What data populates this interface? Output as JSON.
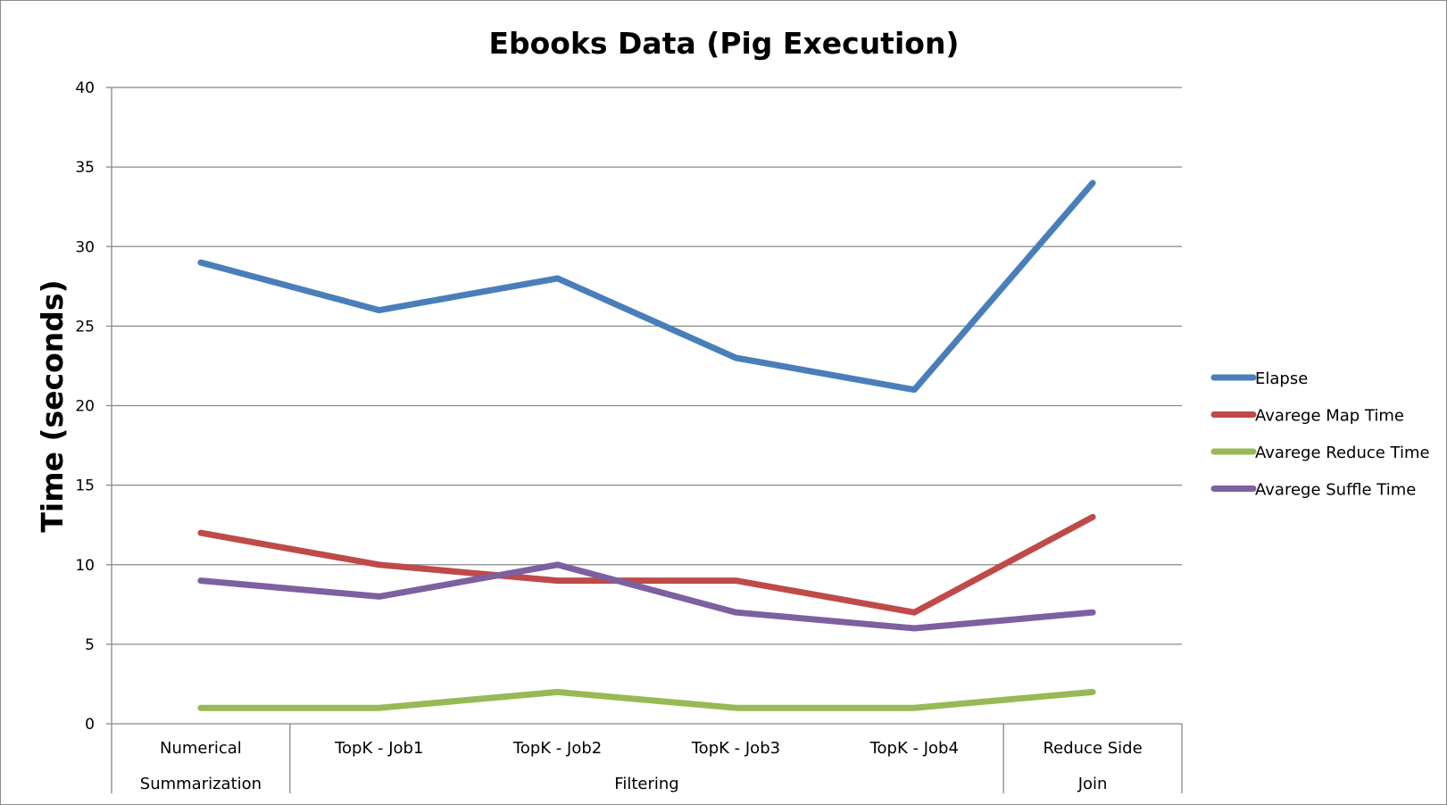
{
  "chart_data": {
    "type": "line",
    "title": "Ebooks Data (Pig Execution)",
    "xlabel": "",
    "ylabel": "Time (seconds)",
    "ylim": [
      0,
      40
    ],
    "yticks": [
      0,
      5,
      10,
      15,
      20,
      25,
      30,
      35,
      40
    ],
    "grid": true,
    "legend_position": "right",
    "categories": [
      "Numerical",
      "TopK - Job1",
      "TopK - Job2",
      "TopK - Job3",
      "TopK - Job4",
      "Reduce Side"
    ],
    "groups": [
      {
        "label": "Summarization",
        "start": 0,
        "end": 0
      },
      {
        "label": "Filtering",
        "start": 1,
        "end": 4
      },
      {
        "label": "Join",
        "start": 5,
        "end": 5
      }
    ],
    "series": [
      {
        "name": "Elapse",
        "color": "#4a7ebb",
        "values": [
          29,
          26,
          28,
          23,
          21,
          34
        ]
      },
      {
        "name": "Avarege Map Time",
        "color": "#be4b48",
        "values": [
          12,
          10,
          9,
          9,
          7,
          13
        ]
      },
      {
        "name": "Avarege Reduce Time",
        "color": "#98b954",
        "values": [
          1,
          1,
          2,
          1,
          1,
          2
        ]
      },
      {
        "name": "Avarege Suffle Time",
        "color": "#7d60a0",
        "values": [
          9,
          8,
          10,
          7,
          6,
          7
        ]
      }
    ]
  }
}
